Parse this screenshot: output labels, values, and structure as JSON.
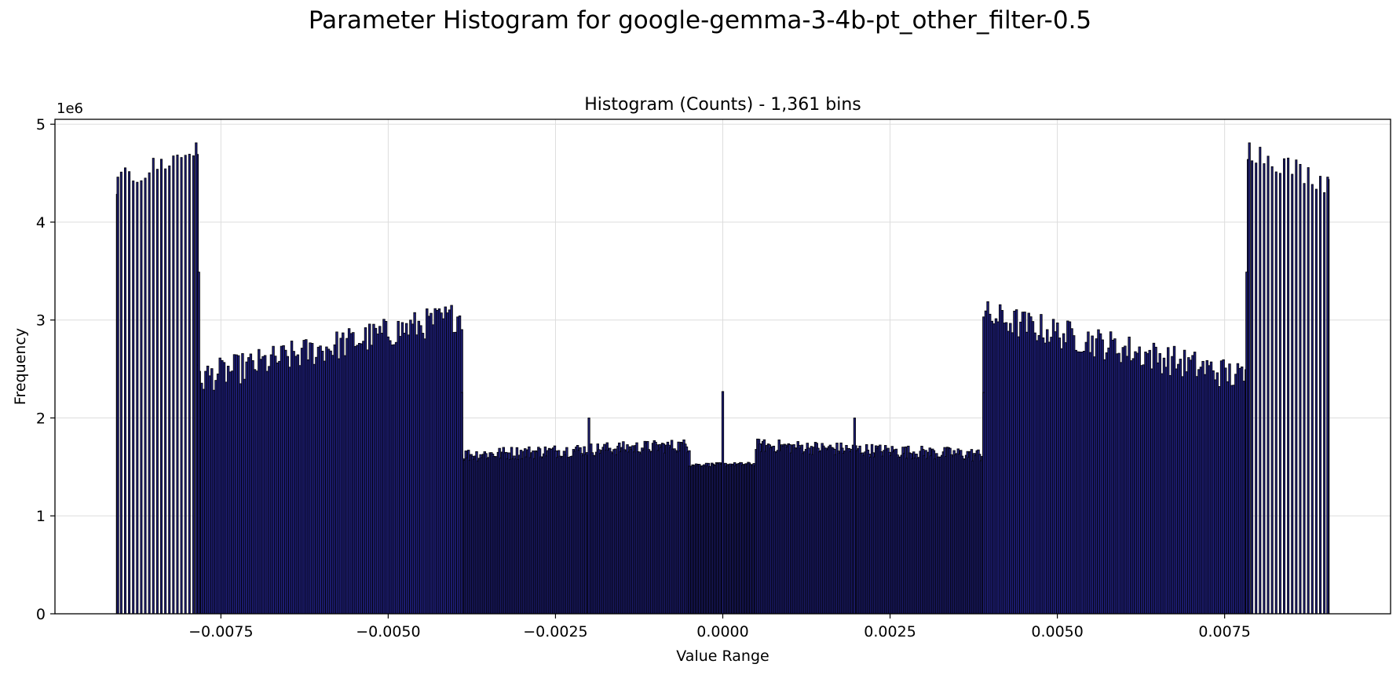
{
  "page_title": "Parameter Histogram for google-gemma-3-4b-pt_other_filter-0.5",
  "colors": {
    "bar_fill": "#1f1f7a",
    "bar_edge": "#000000",
    "grid": "#dddddd",
    "axis": "#000000",
    "background": "#ffffff"
  },
  "chart_data": {
    "type": "bar",
    "title": "Histogram (Counts) - 1,361 bins",
    "xlabel": "Value Range",
    "ylabel": "Frequency",
    "y_scale_label": "1e6",
    "xlim": [
      -0.00998,
      0.00998
    ],
    "ylim": [
      0,
      5.05
    ],
    "grid": true,
    "x_ticks": [
      -0.0075,
      -0.005,
      -0.0025,
      0.0,
      0.0025,
      0.005,
      0.0075
    ],
    "x_tick_labels": [
      "−0.0075",
      "−0.0050",
      "−0.0025",
      "0.0000",
      "0.0025",
      "0.0050",
      "0.0075"
    ],
    "y_ticks": [
      0,
      1,
      2,
      3,
      4,
      5
    ],
    "y_tick_labels": [
      "0",
      "1",
      "2",
      "3",
      "4",
      "5"
    ],
    "y_units": "millions of counts",
    "bins": 1361,
    "series_segments": [
      {
        "x_start": -0.00905,
        "x_end": -0.00785,
        "n_bars": 21,
        "y_start": 4.4,
        "y_end": 4.75,
        "jitter": 0.12,
        "step": "sparse"
      },
      {
        "x_start": -0.00785,
        "x_end": -0.0039,
        "n_bars": 130,
        "y_start": 2.4,
        "y_end": 3.05,
        "jitter": 0.16,
        "step": "dense"
      },
      {
        "x_start": -0.0039,
        "x_end": -0.0005,
        "n_bars": 170,
        "y_start": 1.62,
        "y_end": 1.72,
        "jitter": 0.07,
        "step": "dense"
      },
      {
        "x_start": -0.0005,
        "x_end": 0.0005,
        "n_bars": 60,
        "y_start": 1.52,
        "y_end": 1.53,
        "jitter": 0.02,
        "step": "dense"
      },
      {
        "x_start": 0.0005,
        "x_end": 0.0039,
        "n_bars": 170,
        "y_start": 1.72,
        "y_end": 1.62,
        "jitter": 0.07,
        "step": "dense"
      },
      {
        "x_start": 0.0039,
        "x_end": 0.00785,
        "n_bars": 130,
        "y_start": 3.05,
        "y_end": 2.4,
        "jitter": 0.16,
        "step": "dense"
      },
      {
        "x_start": 0.00785,
        "x_end": 0.00905,
        "n_bars": 21,
        "y_start": 4.75,
        "y_end": 4.4,
        "jitter": 0.12,
        "step": "sparse"
      }
    ],
    "underlay_levels": [
      {
        "x_start": -0.0039,
        "x_end": -0.0019,
        "y": 1.35
      },
      {
        "x_start": -0.0019,
        "x_end": -0.0007,
        "y": 0.85
      },
      {
        "x_start": -0.0007,
        "x_end": 0.0007,
        "y": 1.3
      },
      {
        "x_start": 0.0007,
        "x_end": 0.0019,
        "y": 0.85
      },
      {
        "x_start": 0.0019,
        "x_end": 0.0039,
        "y": 1.35
      }
    ],
    "notable_bars": [
      {
        "x": -0.00783,
        "y": 3.49
      },
      {
        "x": -0.0039,
        "y": 2.26
      },
      {
        "x": -0.002,
        "y": 2.0
      },
      {
        "x": 0.0,
        "y": 2.27
      },
      {
        "x": 0.00197,
        "y": 2.0
      },
      {
        "x": 0.0039,
        "y": 2.26
      },
      {
        "x": 0.00783,
        "y": 3.49
      },
      {
        "x": -0.00904,
        "y": 4.46
      },
      {
        "x": 0.00904,
        "y": 4.46
      },
      {
        "x": -0.00787,
        "y": 4.81
      },
      {
        "x": 0.00787,
        "y": 4.81
      }
    ]
  }
}
